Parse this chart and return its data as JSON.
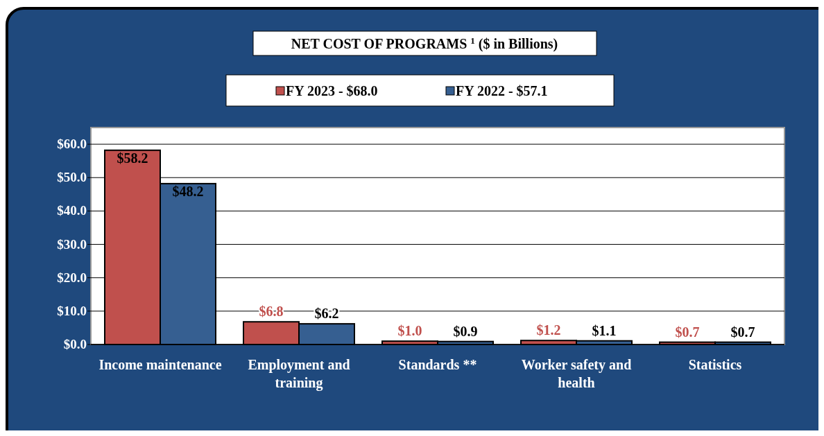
{
  "chart_data": {
    "type": "bar",
    "title": "NET COST OF PROGRAMS $^{1}$ ($ in Billions)",
    "categories": [
      "Income maintenance",
      "Employment and training",
      "Standards **",
      "Worker safety and health",
      "Statistics"
    ],
    "series": [
      {
        "name": "FY 2023 - $68.0",
        "color": "#c0504d",
        "values": [
          58.2,
          6.8,
          1.0,
          1.2,
          0.7
        ],
        "value_labels": [
          "$58.2",
          "$6.8",
          "$1.0",
          "$1.2",
          "$0.7"
        ]
      },
      {
        "name": "FY 2022 - $57.1",
        "color": "#365f91",
        "values": [
          48.2,
          6.2,
          0.9,
          1.1,
          0.7
        ],
        "value_labels": [
          "$48.2",
          "$6.2",
          "$0.9",
          "$1.1",
          "$0.7"
        ]
      }
    ],
    "ylim": [
      0,
      65
    ],
    "yticks": [
      {
        "value": 0,
        "label": "$0.0"
      },
      {
        "value": 10,
        "label": "$10.0"
      },
      {
        "value": 20,
        "label": "$20.0"
      },
      {
        "value": 30,
        "label": "$30.0"
      },
      {
        "value": 40,
        "label": "$40.0"
      },
      {
        "value": 50,
        "label": "$50.0"
      },
      {
        "value": 60,
        "label": "$60.0"
      }
    ],
    "grid": "y",
    "legend": "top"
  }
}
